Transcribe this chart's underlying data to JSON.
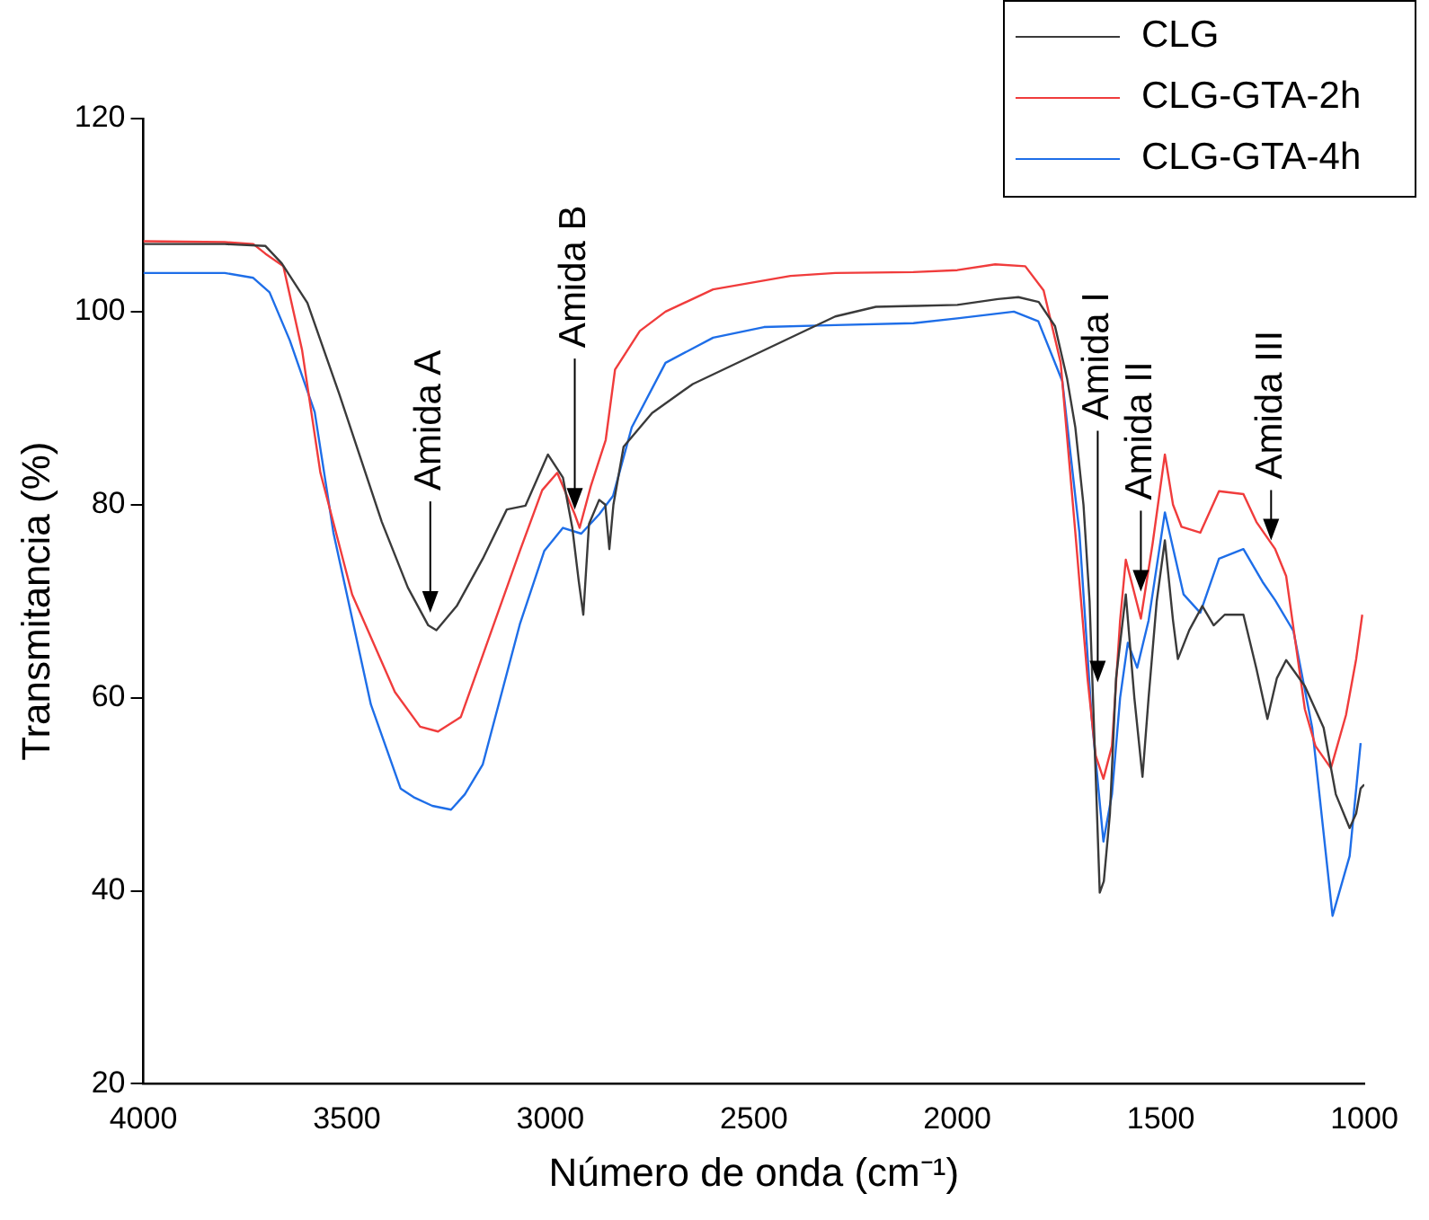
{
  "chart_data": {
    "type": "line",
    "xlabel": "Número de onda (cm⁻¹)",
    "ylabel": "Transmitancia (%)",
    "xlim": [
      4000,
      1000
    ],
    "xticks": [
      4000,
      3500,
      3000,
      2500,
      2000,
      1500,
      1000
    ],
    "ylim": [
      20,
      120
    ],
    "yticks": [
      20,
      40,
      60,
      80,
      100,
      120
    ],
    "legend": "top right",
    "marker": "none",
    "annotations": [
      {
        "text": "Amida A",
        "x": 3295,
        "y": 68.8
      },
      {
        "text": "Amida B",
        "x": 2940,
        "y": 79.5
      },
      {
        "text": "Amida I",
        "x": 1655,
        "y": 61.6
      },
      {
        "text": "Amida II",
        "x": 1549,
        "y": 71
      },
      {
        "text": "Amida III",
        "x": 1229,
        "y": 76.3
      }
    ],
    "series": [
      {
        "name": "CLG",
        "color": "#3a3a3a",
        "x": [
          4000,
          3800,
          3700,
          3660,
          3597,
          3519,
          3414,
          3350,
          3300,
          3280,
          3230,
          3166,
          3107,
          3061,
          3006,
          2969,
          2946,
          2930,
          2919,
          2905,
          2880,
          2865,
          2855,
          2845,
          2820,
          2750,
          2650,
          2500,
          2400,
          2300,
          2200,
          2100,
          2000,
          1900,
          1850,
          1800,
          1760,
          1730,
          1710,
          1690,
          1675,
          1660,
          1650,
          1640,
          1625,
          1610,
          1586,
          1565,
          1545,
          1530,
          1510,
          1490,
          1470,
          1458,
          1430,
          1398,
          1370,
          1343,
          1297,
          1265,
          1238,
          1215,
          1192,
          1146,
          1100,
          1070,
          1036,
          1020,
          1009,
          1000
        ],
        "values": [
          107,
          107,
          106.8,
          105,
          100.9,
          91.5,
          78.2,
          71.4,
          67.5,
          67,
          69.5,
          74.4,
          79.5,
          79.9,
          85.2,
          82.8,
          77.6,
          72,
          68.6,
          78,
          80.5,
          80,
          75.4,
          80,
          86,
          89.5,
          92.5,
          95.5,
          97.5,
          99.5,
          100.5,
          100.6,
          100.7,
          101.3,
          101.5,
          101,
          98.5,
          93,
          88,
          80,
          70,
          52,
          39.8,
          41,
          48,
          62,
          70.7,
          60,
          51.8,
          60,
          70,
          76.3,
          68,
          64,
          67,
          69.5,
          67.5,
          68.6,
          68.6,
          63,
          57.8,
          62,
          63.9,
          61.2,
          56.9,
          50,
          46.5,
          48,
          50.6,
          51
        ]
      },
      {
        "name": "CLG-GTA-2h",
        "color": "#f03c3c",
        "x": [
          4000,
          3800,
          3730,
          3700,
          3656,
          3610,
          3565,
          3487,
          3382,
          3320,
          3276,
          3220,
          3166,
          3075,
          3020,
          2983,
          2960,
          2940,
          2928,
          2900,
          2864,
          2841,
          2780,
          2717,
          2600,
          2410,
          2300,
          2108,
          2000,
          1907,
          1833,
          1788,
          1746,
          1710,
          1680,
          1660,
          1641,
          1620,
          1600,
          1586,
          1549,
          1520,
          1490,
          1470,
          1449,
          1403,
          1357,
          1297,
          1265,
          1219,
          1192,
          1170,
          1146,
          1120,
          1082,
          1045,
          1020,
          1005
        ],
        "values": [
          107.3,
          107.2,
          107,
          106,
          104.7,
          96,
          83.3,
          70.7,
          60.6,
          57,
          56.5,
          58,
          64.4,
          75.2,
          81.5,
          83.3,
          81,
          79,
          77.6,
          82,
          86.7,
          94,
          98,
          100,
          102.3,
          103.7,
          104,
          104.1,
          104.3,
          104.9,
          104.7,
          102.2,
          94.7,
          77.1,
          62,
          54,
          51.6,
          55,
          68,
          74.3,
          68.2,
          76,
          85.2,
          80,
          77.7,
          77.1,
          81.4,
          81.1,
          78.2,
          75.4,
          72.6,
          66,
          58.8,
          55,
          52.7,
          58.2,
          64,
          68.6
        ]
      },
      {
        "name": "CLG-GTA-4h",
        "color": "#1e6ee8",
        "x": [
          4000,
          3800,
          3730,
          3690,
          3640,
          3579,
          3533,
          3441,
          3368,
          3336,
          3290,
          3244,
          3210,
          3166,
          3075,
          3015,
          2969,
          2924,
          2880,
          2846,
          2800,
          2717,
          2600,
          2475,
          2300,
          2108,
          2000,
          1861,
          1801,
          1742,
          1700,
          1670,
          1641,
          1620,
          1600,
          1581,
          1558,
          1530,
          1490,
          1444,
          1403,
          1357,
          1297,
          1250,
          1219,
          1174,
          1128,
          1100,
          1078,
          1036,
          1009
        ],
        "values": [
          104,
          104,
          103.5,
          102,
          97,
          89.6,
          77.1,
          59.3,
          50.6,
          49.7,
          48.8,
          48.4,
          50,
          53.1,
          67.6,
          75.2,
          77.6,
          77,
          79,
          80.9,
          88,
          94.7,
          97.3,
          98.4,
          98.6,
          98.8,
          99.3,
          100,
          99,
          92.8,
          77.1,
          58,
          45.1,
          50,
          60,
          65.7,
          63.1,
          68,
          79.2,
          70.7,
          68.8,
          74.4,
          75.4,
          72,
          70.1,
          66.9,
          56.9,
          46,
          37.4,
          43.6,
          55.3
        ]
      }
    ]
  }
}
